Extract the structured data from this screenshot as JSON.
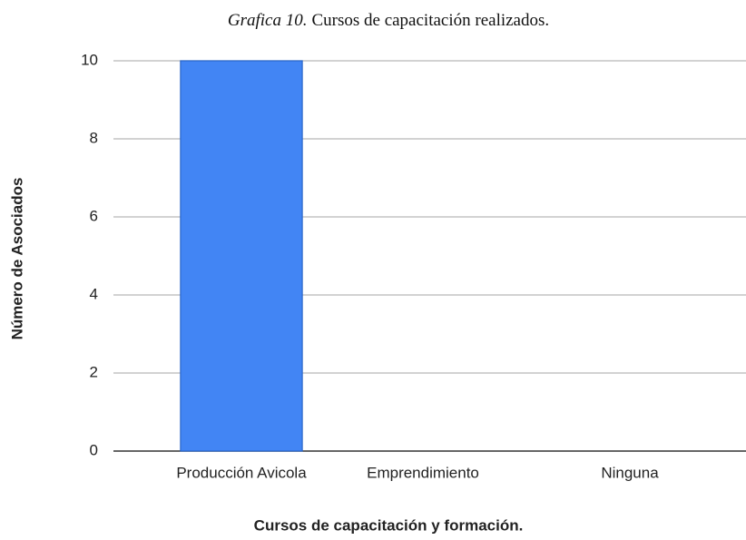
{
  "chart_data": {
    "type": "bar",
    "title_label": "Grafica 10.",
    "title": "Cursos de capacitación realizados.",
    "categories": [
      "Producción Avicola",
      "Emprendimiento",
      "Ninguna"
    ],
    "values": [
      10,
      0,
      0
    ],
    "color": "#4285f4",
    "xlabel": "Cursos de capacitación y formación.",
    "ylabel": "Número de Asociados",
    "ylim": [
      0,
      10
    ],
    "yticks": [
      0,
      2,
      4,
      6,
      8,
      10
    ],
    "grid": true
  }
}
